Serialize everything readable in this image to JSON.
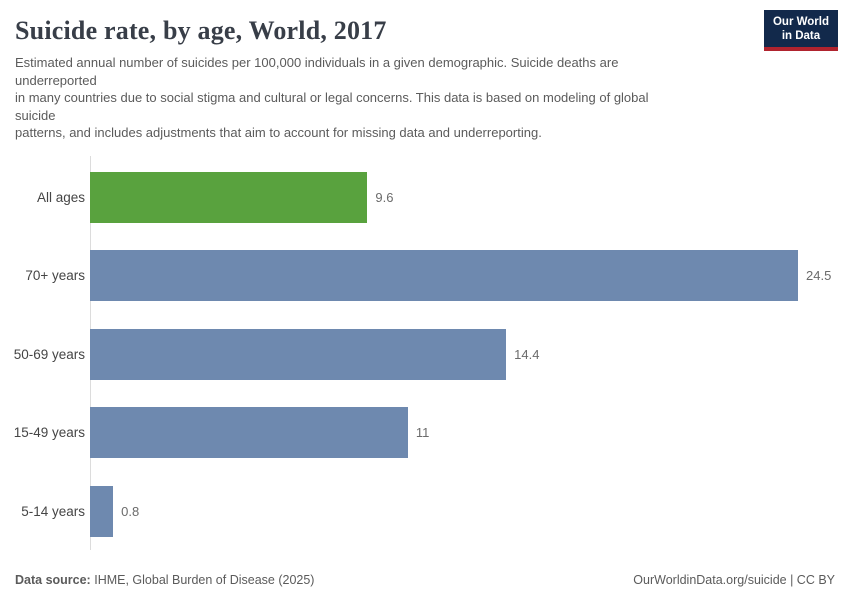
{
  "header": {
    "title": "Suicide rate, by age, World, 2017",
    "subtitle": "Estimated annual number of suicides per 100,000 individuals in a given demographic. Suicide deaths are\nunderreported\nin many countries due to social stigma and cultural or legal concerns. This data is based on modeling of global\nsuicide\npatterns, and includes adjustments that aim to account for missing data and underreporting.",
    "logo_text": "Our World\nin Data"
  },
  "chart_data": {
    "type": "bar",
    "orientation": "horizontal",
    "title": "Suicide rate, by age, World, 2017",
    "categories": [
      "All ages",
      "70+ years",
      "50-69 years",
      "15-49 years",
      "5-14 years"
    ],
    "values": [
      9.6,
      24.5,
      14.4,
      11,
      0.8
    ],
    "unit": "suicides per 100,000 individuals",
    "xlabel": "",
    "ylabel": "",
    "xmax": 24.5,
    "grid": false,
    "legend": "none",
    "bar_colors": [
      "#59a23e",
      "#6e89af",
      "#6e89af",
      "#6e89af",
      "#6e89af"
    ]
  },
  "footer": {
    "source_label": "Data source:",
    "source_value": "IHME, Global Burden of Disease (2025)",
    "attribution": "OurWorldinData.org/suicide | CC BY"
  },
  "colors": {
    "highlight_bar": "#59a23e",
    "default_bar": "#6e89af",
    "logo_bg": "#12294b",
    "logo_stripe": "#b0232e",
    "title_text": "#383e48",
    "body_text": "#5b5b5b",
    "axis_line": "#dcdcdc"
  }
}
